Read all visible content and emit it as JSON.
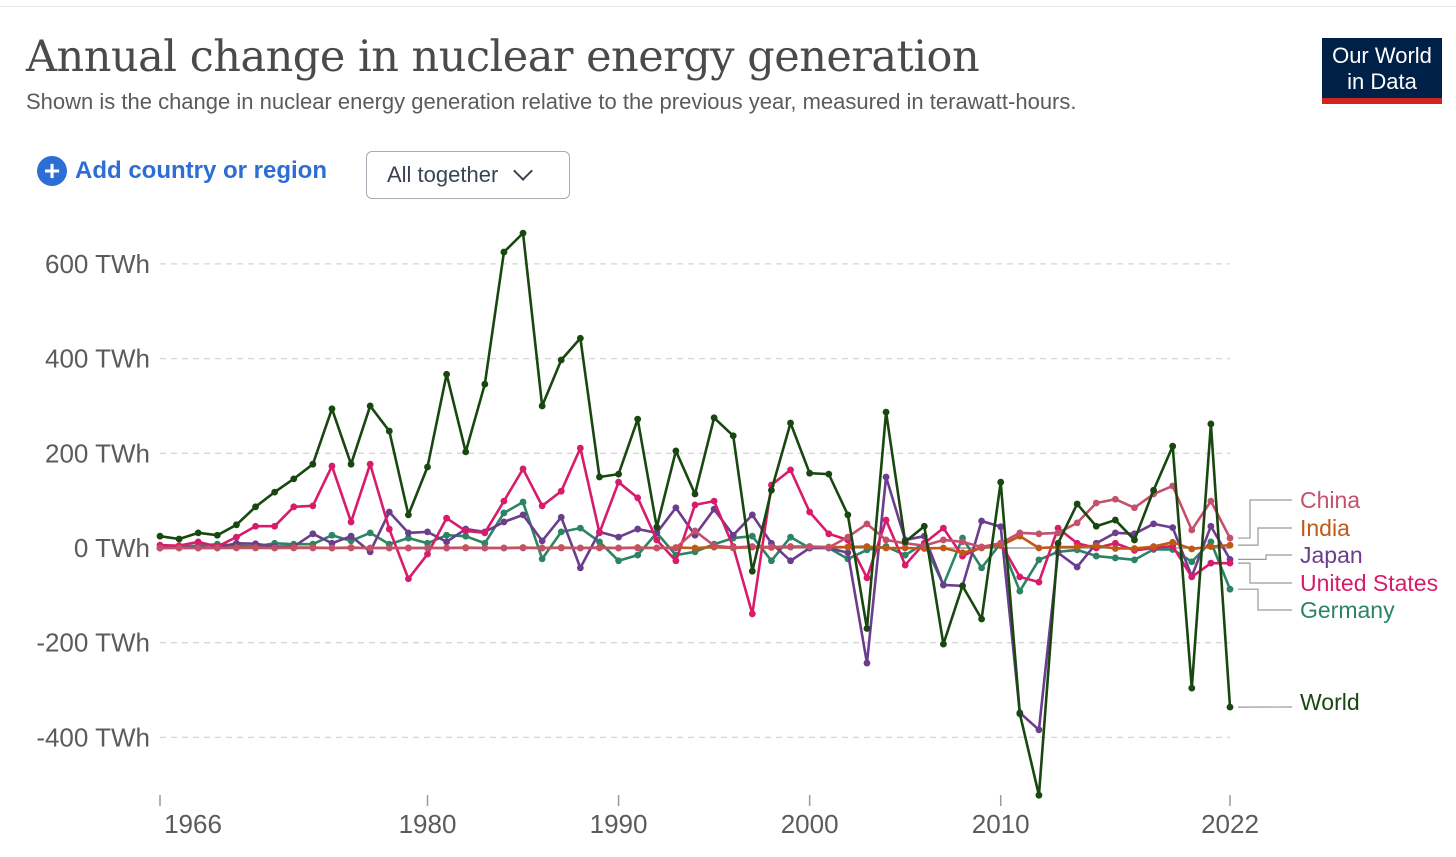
{
  "header": {
    "title": "Annual change in nuclear energy generation",
    "subtitle": "Shown is the change in nuclear energy generation relative to the previous year, measured in terawatt-hours.",
    "logo_line1": "Our World",
    "logo_line2": "in Data"
  },
  "controls": {
    "add_label": "Add country or region",
    "add_icon": "plus-circle-icon",
    "dropdown_value": "All together",
    "dropdown_icon": "chevron-down-icon"
  },
  "colors": {
    "accent": "#2d6ed6",
    "logo_bg": "#002147",
    "logo_bar": "#ce261e"
  },
  "chart_data": {
    "type": "line",
    "title": "Annual change in nuclear energy generation",
    "ylabel": "TWh",
    "ylim": [
      -520,
      680
    ],
    "xlim": [
      1966,
      2022
    ],
    "grid": true,
    "yticks": [
      {
        "value": 600,
        "label": "600 TWh"
      },
      {
        "value": 400,
        "label": "400 TWh"
      },
      {
        "value": 200,
        "label": "200 TWh"
      },
      {
        "value": 0,
        "label": "0 TWh"
      },
      {
        "value": -200,
        "label": "-200 TWh"
      },
      {
        "value": -400,
        "label": "-400 TWh"
      }
    ],
    "xticks": [
      {
        "value": 1966,
        "label": "1966"
      },
      {
        "value": 1980,
        "label": "1980"
      },
      {
        "value": 1990,
        "label": "1990"
      },
      {
        "value": 2000,
        "label": "2000"
      },
      {
        "value": 2010,
        "label": "2010"
      },
      {
        "value": 2022,
        "label": "2022"
      }
    ],
    "x_start": 1966,
    "legend_placement": "right",
    "series": [
      {
        "name": "China",
        "color": "#c4516c",
        "label_slot": 0,
        "values": [
          0,
          0,
          0,
          0,
          0,
          0,
          0,
          0,
          0,
          0,
          0,
          0,
          0,
          0,
          0,
          0,
          0,
          0,
          0,
          0,
          0,
          0,
          0,
          0,
          0,
          0,
          0,
          0,
          36,
          5,
          1,
          3,
          2,
          3,
          3,
          1,
          23,
          51,
          17,
          10,
          5,
          17,
          13,
          2,
          10,
          32,
          30,
          32,
          53,
          95,
          103,
          85,
          114,
          131,
          38,
          99,
          21
        ]
      },
      {
        "name": "India",
        "color": "#c05917",
        "label_slot": 1,
        "values": [
          0,
          0,
          0,
          0,
          1,
          1,
          0,
          1,
          1,
          0,
          1,
          0,
          0,
          0,
          0,
          0,
          1,
          0,
          0,
          1,
          0,
          1,
          0,
          1,
          0,
          1,
          0,
          1,
          0,
          2,
          0,
          2,
          1,
          2,
          3,
          2,
          2,
          3,
          0,
          0,
          -1,
          0,
          -10,
          0,
          5,
          25,
          0,
          2,
          2,
          5,
          -1,
          -1,
          3,
          12,
          -2,
          3,
          6
        ]
      },
      {
        "name": "Japan",
        "color": "#6b3d8d",
        "label_slot": 2,
        "values": [
          0,
          1,
          1,
          1,
          10,
          9,
          3,
          3,
          30,
          10,
          25,
          -8,
          76,
          32,
          34,
          13,
          40,
          34,
          55,
          70,
          15,
          65,
          -42,
          34,
          23,
          40,
          32,
          85,
          27,
          82,
          27,
          70,
          10,
          -27,
          0,
          0,
          -10,
          -243,
          150,
          17,
          25,
          -78,
          -80,
          57,
          45,
          -348,
          -384,
          -10,
          -40,
          10,
          32,
          30,
          51,
          43,
          -60,
          46,
          -24
        ]
      },
      {
        "name": "United States",
        "color": "#d81b6a",
        "label_slot": 3,
        "values": [
          6,
          5,
          13,
          3,
          23,
          46,
          46,
          87,
          89,
          173,
          55,
          177,
          40,
          -65,
          -13,
          63,
          36,
          32,
          99,
          167,
          89,
          120,
          211,
          32,
          139,
          106,
          17,
          -27,
          91,
          99,
          3,
          -139,
          133,
          165,
          76,
          30,
          17,
          -63,
          59,
          -36,
          10,
          42,
          -17,
          2,
          10,
          -61,
          -72,
          42,
          10,
          0,
          10,
          -5,
          0,
          4,
          -61,
          -32,
          -32
        ]
      },
      {
        "name": "Germany",
        "color": "#2c8465",
        "label_slot": 4,
        "values": [
          0,
          3,
          5,
          8,
          5,
          3,
          10,
          8,
          8,
          27,
          15,
          32,
          8,
          21,
          10,
          27,
          25,
          10,
          74,
          97,
          -23,
          34,
          42,
          13,
          -27,
          -15,
          32,
          -15,
          -8,
          8,
          21,
          25,
          -27,
          23,
          0,
          0,
          -23,
          -4,
          3,
          -15,
          10,
          -78,
          21,
          -42,
          10,
          -91,
          -25,
          -8,
          -4,
          -17,
          -21,
          -25,
          -3,
          -3,
          -29,
          13,
          -87
        ]
      },
      {
        "name": "World",
        "color": "#18470f",
        "label_slot": 5,
        "values": [
          25,
          19,
          32,
          27,
          49,
          87,
          118,
          146,
          177,
          294,
          177,
          300,
          247,
          70,
          171,
          367,
          203,
          346,
          625,
          665,
          300,
          397,
          443,
          150,
          156,
          272,
          44,
          205,
          114,
          275,
          237,
          -49,
          122,
          264,
          158,
          156,
          70,
          -170,
          287,
          13,
          46,
          -203,
          -80,
          -150,
          139,
          -350,
          -522,
          10,
          93,
          46,
          59,
          17,
          122,
          215,
          -296,
          262,
          -336
        ]
      }
    ]
  }
}
